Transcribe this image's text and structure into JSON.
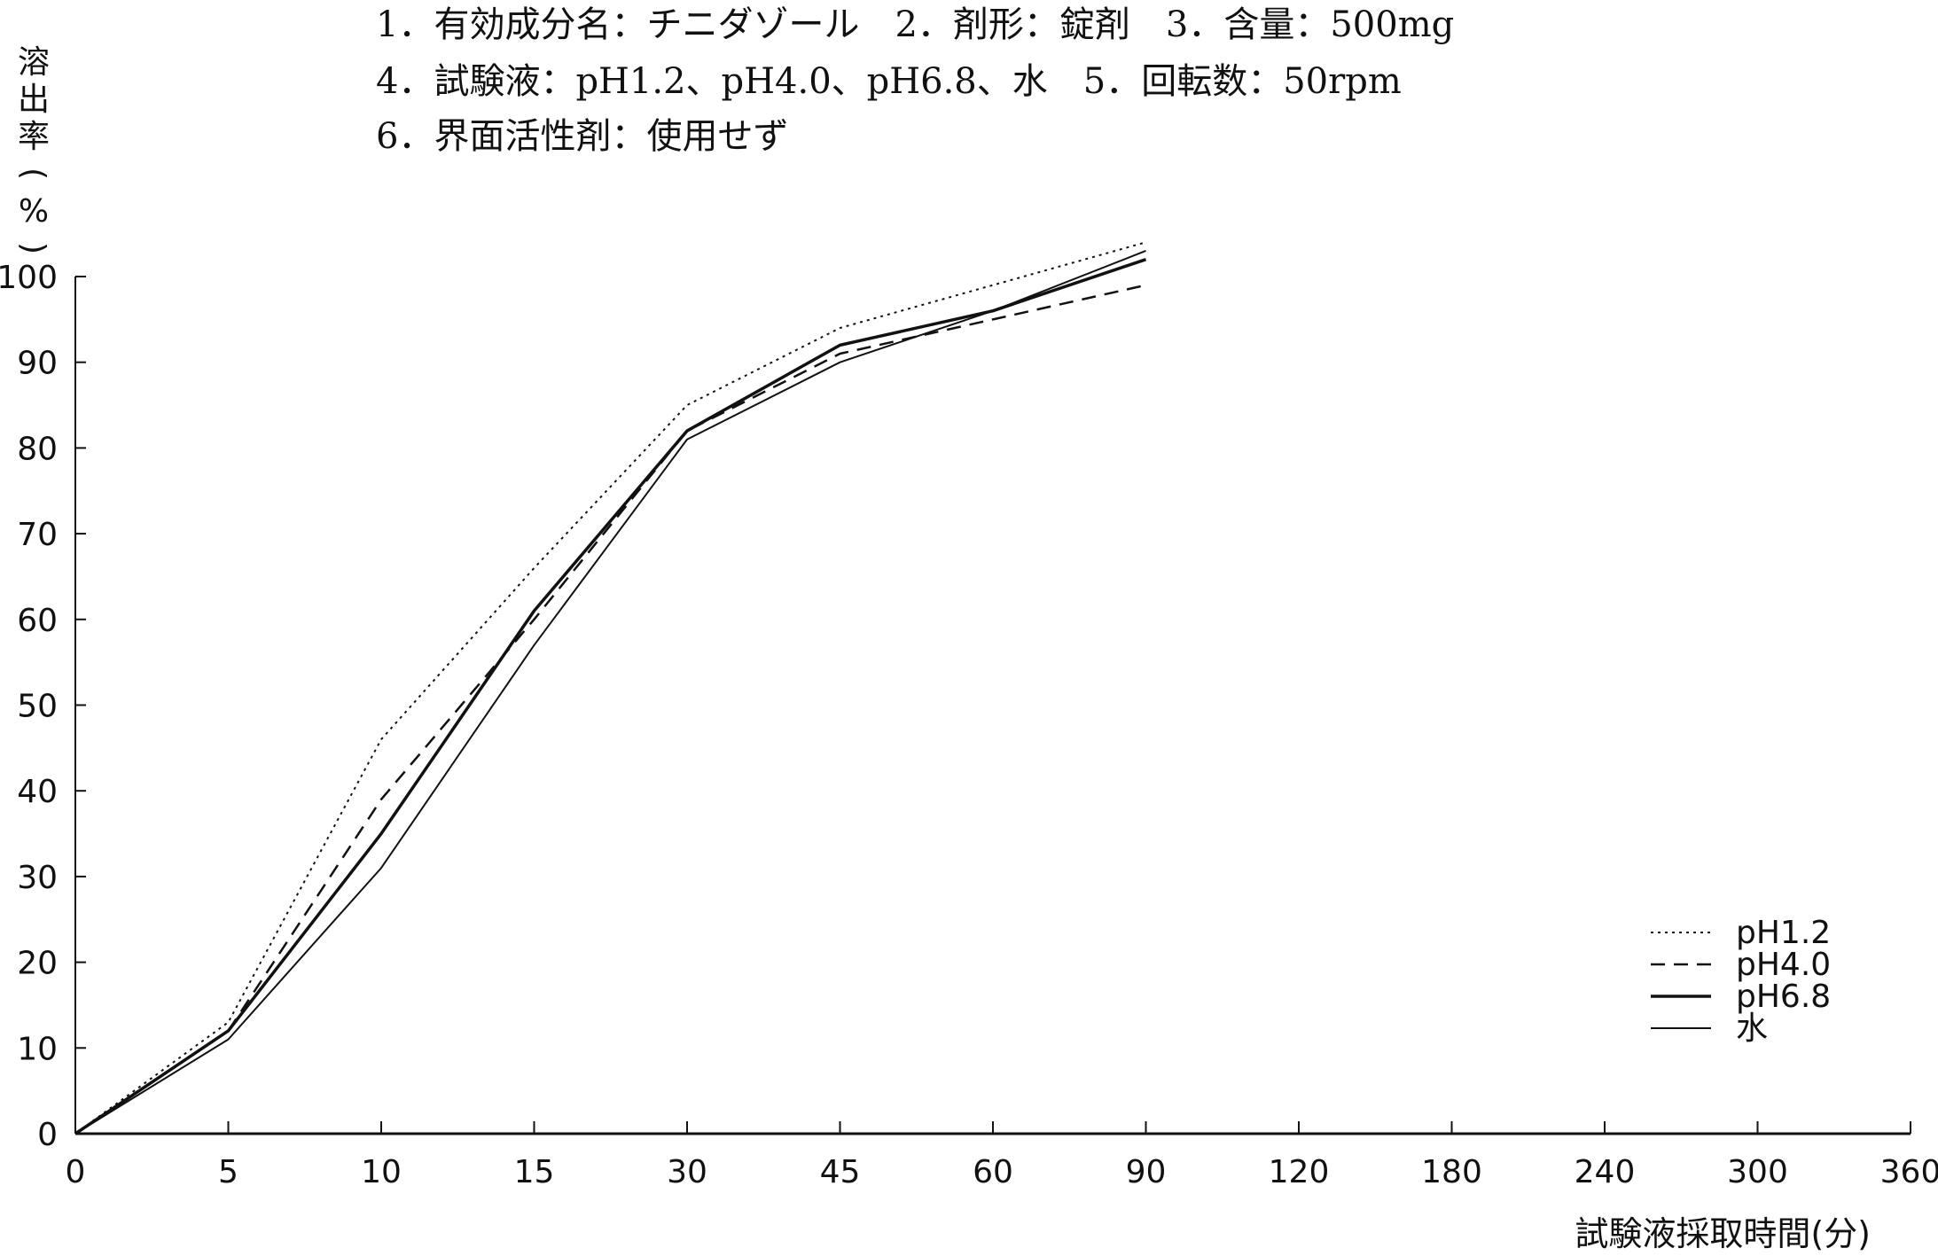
{
  "header": {
    "line1": "1．有効成分名：チニダゾール　2．剤形：錠剤　3．含量：500mg",
    "line2": "4．試験液：pH1.2、pH4.0、pH6.8、水　5．回転数：50rpm",
    "line3": "6．界面活性剤：使用せず"
  },
  "chart_data": {
    "type": "line",
    "ylabel": "溶出率(%)",
    "xlabel": "試験液採取時間(分)",
    "x_categorical": true,
    "categories": [
      "0",
      "5",
      "10",
      "15",
      "30",
      "45",
      "60",
      "90",
      "120",
      "180",
      "240",
      "300",
      "360"
    ],
    "y_ticks": [
      "0",
      "10",
      "20",
      "30",
      "40",
      "50",
      "60",
      "70",
      "80",
      "90",
      "100"
    ],
    "ylim": [
      0,
      100
    ],
    "grid": false,
    "legend_position": "bottom-right",
    "series": [
      {
        "name": "pH1.2",
        "style": "dotted",
        "x": [
          "0",
          "5",
          "10",
          "15",
          "30",
          "45",
          "60",
          "90"
        ],
        "values": [
          0,
          13,
          46,
          66,
          85,
          94,
          99,
          104
        ]
      },
      {
        "name": "pH4.0",
        "style": "dashed",
        "x": [
          "0",
          "5",
          "10",
          "15",
          "30",
          "45",
          "60",
          "90"
        ],
        "values": [
          0,
          12,
          39,
          60,
          82,
          91,
          95,
          99
        ]
      },
      {
        "name": "pH6.8",
        "style": "solid-thick",
        "x": [
          "0",
          "5",
          "10",
          "15",
          "30",
          "45",
          "60",
          "90"
        ],
        "values": [
          0,
          12,
          35,
          61,
          82,
          92,
          96,
          102
        ]
      },
      {
        "name": "水",
        "style": "solid",
        "x": [
          "0",
          "5",
          "10",
          "15",
          "30",
          "45",
          "60",
          "90"
        ],
        "values": [
          0,
          11,
          31,
          57,
          81,
          90,
          96,
          103
        ]
      }
    ]
  }
}
